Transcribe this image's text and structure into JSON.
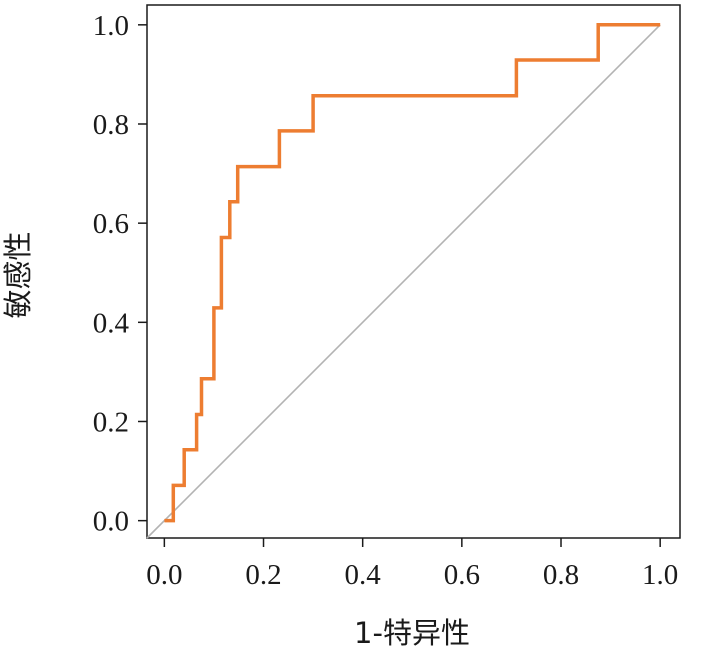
{
  "chart_data": {
    "type": "line",
    "title": "",
    "xlabel": "1-特异性",
    "ylabel": "敏感性",
    "xlim": [
      -0.035,
      1.04
    ],
    "ylim": [
      -0.035,
      1.04
    ],
    "xticks": [
      {
        "value": 0.0,
        "label": "0.0"
      },
      {
        "value": 0.2,
        "label": "0.2"
      },
      {
        "value": 0.4,
        "label": "0.4"
      },
      {
        "value": 0.6,
        "label": "0.6"
      },
      {
        "value": 0.8,
        "label": "0.8"
      },
      {
        "value": 1.0,
        "label": "1.0"
      }
    ],
    "yticks": [
      {
        "value": 0.0,
        "label": "0.0"
      },
      {
        "value": 0.2,
        "label": "0.2"
      },
      {
        "value": 0.4,
        "label": "0.4"
      },
      {
        "value": 0.6,
        "label": "0.6"
      },
      {
        "value": 0.8,
        "label": "0.8"
      },
      {
        "value": 1.0,
        "label": "1.0"
      }
    ],
    "grid": false,
    "series": [
      {
        "color": "#ed7d31",
        "x": [
          0.0,
          0.018,
          0.018,
          0.04,
          0.04,
          0.065,
          0.065,
          0.075,
          0.075,
          0.1,
          0.1,
          0.115,
          0.115,
          0.132,
          0.132,
          0.148,
          0.148,
          0.232,
          0.232,
          0.3,
          0.3,
          0.71,
          0.71,
          0.875,
          0.875,
          1.0
        ],
        "y": [
          0.0,
          0.0,
          0.071,
          0.071,
          0.143,
          0.143,
          0.214,
          0.214,
          0.286,
          0.286,
          0.429,
          0.429,
          0.571,
          0.571,
          0.643,
          0.643,
          0.714,
          0.714,
          0.786,
          0.786,
          0.857,
          0.857,
          0.929,
          0.929,
          1.0,
          1.0
        ]
      }
    ],
    "reference_line": {
      "x": [
        -0.035,
        1.0
      ],
      "y": [
        -0.035,
        1.0
      ],
      "color": "#b3b3b3"
    }
  }
}
